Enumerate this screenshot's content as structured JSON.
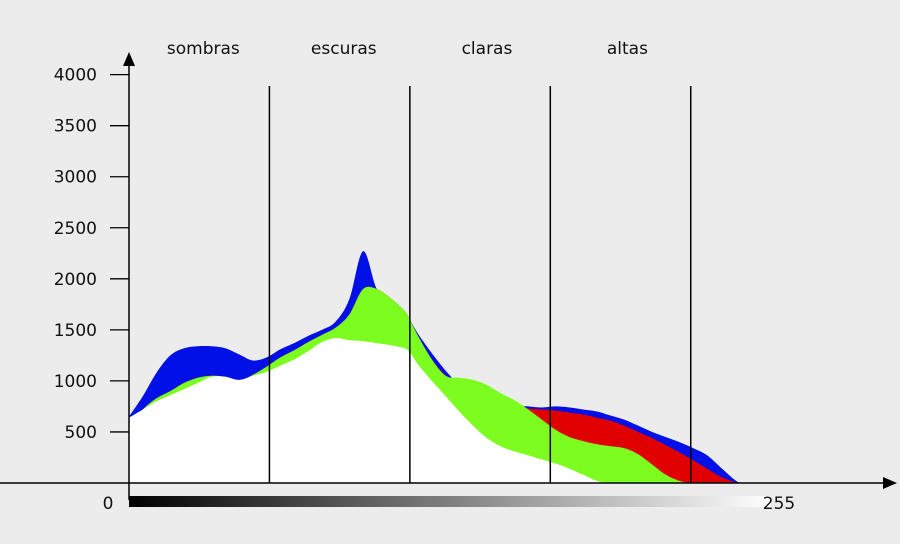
{
  "chart_data": {
    "type": "area",
    "title": "",
    "xlabel": "",
    "ylabel": "",
    "y_ticks": [
      "500",
      "1000",
      "1500",
      "2000",
      "2500",
      "3000",
      "3500",
      "4000"
    ],
    "ylim": [
      0,
      4300
    ],
    "xlim": [
      0,
      280
    ],
    "x_start_label": "0",
    "x_end_label": "255",
    "zones": [
      {
        "label": "sombras"
      },
      {
        "label": "escuras"
      },
      {
        "label": "claras"
      },
      {
        "label": "altas"
      }
    ],
    "zone_dividers_x": [
      51,
      102,
      153,
      204
    ],
    "zone_centers_x": [
      27,
      78,
      130,
      181
    ],
    "series": [
      {
        "color": "#0010e6",
        "x": [
          0,
          5,
          10,
          15,
          20,
          25,
          30,
          35,
          40,
          45,
          50,
          55,
          60,
          65,
          70,
          75,
          80,
          85,
          90,
          95,
          100,
          102,
          105,
          110,
          115,
          120,
          125,
          130,
          135,
          140,
          145,
          150,
          155,
          160,
          165,
          170,
          175,
          180,
          185,
          190,
          195,
          200,
          205,
          210,
          215,
          220,
          222
        ],
        "values": [
          650,
          850,
          1080,
          1250,
          1320,
          1340,
          1340,
          1320,
          1260,
          1200,
          1230,
          1310,
          1370,
          1440,
          1500,
          1580,
          1800,
          2270,
          1900,
          1790,
          1680,
          1600,
          1460,
          1270,
          1100,
          960,
          860,
          800,
          780,
          760,
          750,
          740,
          750,
          740,
          720,
          700,
          660,
          620,
          560,
          500,
          450,
          400,
          340,
          270,
          150,
          30,
          0
        ]
      },
      {
        "color": "#e00000",
        "x": [
          0,
          5,
          10,
          15,
          20,
          25,
          30,
          35,
          40,
          45,
          50,
          55,
          60,
          65,
          70,
          75,
          80,
          85,
          90,
          95,
          100,
          102,
          105,
          110,
          115,
          120,
          125,
          130,
          135,
          140,
          145,
          150,
          155,
          160,
          165,
          170,
          175,
          180,
          185,
          190,
          195,
          200,
          205,
          210,
          215,
          220,
          222
        ],
        "values": [
          560,
          720,
          830,
          900,
          980,
          1030,
          1050,
          1040,
          1000,
          1060,
          1140,
          1230,
          1300,
          1380,
          1450,
          1520,
          1650,
          1900,
          1900,
          1810,
          1690,
          1600,
          1440,
          1210,
          1050,
          930,
          840,
          780,
          760,
          740,
          730,
          720,
          710,
          690,
          670,
          640,
          610,
          560,
          500,
          440,
          370,
          300,
          220,
          140,
          60,
          10,
          0
        ]
      },
      {
        "color": "#7dfc20",
        "x": [
          0,
          5,
          10,
          15,
          20,
          25,
          30,
          35,
          40,
          45,
          50,
          55,
          60,
          65,
          70,
          75,
          80,
          85,
          90,
          95,
          100,
          102,
          105,
          110,
          115,
          120,
          125,
          130,
          135,
          140,
          145,
          150,
          155,
          160,
          165,
          170,
          175,
          180,
          185,
          190,
          195,
          200,
          205,
          210,
          215,
          220,
          222
        ],
        "values": [
          560,
          720,
          830,
          900,
          980,
          1030,
          1050,
          1040,
          1000,
          1060,
          1140,
          1230,
          1300,
          1380,
          1450,
          1520,
          1650,
          1900,
          1900,
          1810,
          1690,
          1600,
          1440,
          1210,
          1050,
          1030,
          1010,
          960,
          880,
          810,
          720,
          620,
          520,
          450,
          410,
          380,
          360,
          340,
          280,
          180,
          80,
          20,
          0,
          0,
          0,
          0,
          0
        ]
      },
      {
        "color": "#ffffff",
        "x": [
          0,
          5,
          10,
          15,
          20,
          25,
          30,
          35,
          40,
          45,
          50,
          55,
          60,
          65,
          70,
          75,
          80,
          85,
          90,
          95,
          100,
          102,
          105,
          110,
          115,
          120,
          125,
          130,
          135,
          140,
          145,
          150,
          155,
          160,
          165,
          170,
          175,
          180,
          185,
          190,
          195,
          200,
          205,
          210,
          215,
          220,
          222
        ],
        "values": [
          640,
          720,
          800,
          860,
          920,
          980,
          1040,
          1040,
          1010,
          1050,
          1090,
          1150,
          1210,
          1290,
          1380,
          1420,
          1400,
          1390,
          1370,
          1350,
          1320,
          1280,
          1160,
          1000,
          850,
          700,
          560,
          440,
          360,
          310,
          270,
          230,
          190,
          140,
          80,
          20,
          0,
          0,
          0,
          0,
          0,
          0,
          0,
          0,
          0,
          0,
          0
        ]
      }
    ],
    "legend": "none",
    "grid": false
  }
}
